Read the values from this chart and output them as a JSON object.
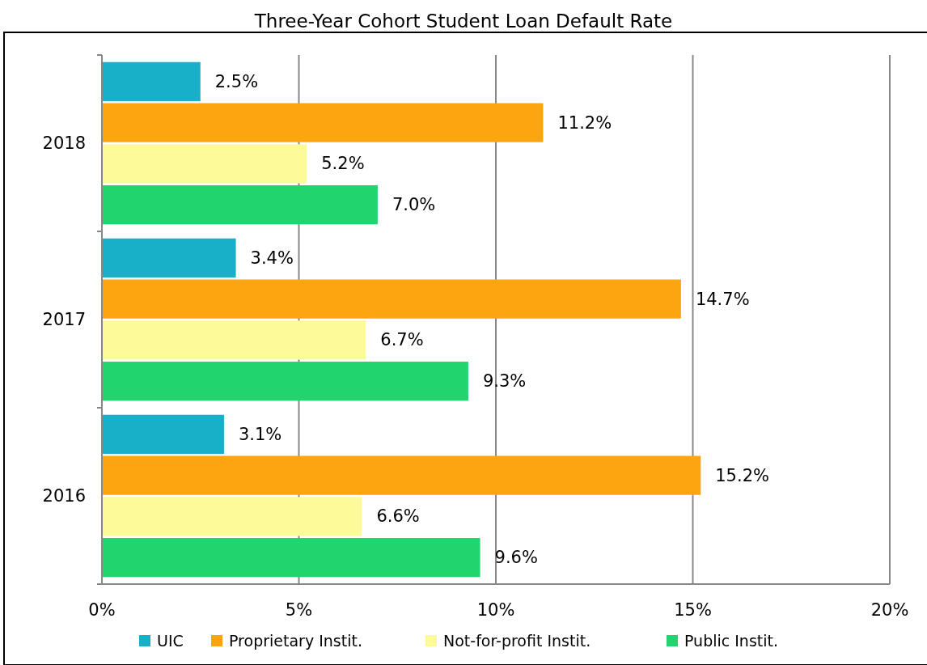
{
  "chart_data": {
    "type": "bar",
    "orientation": "horizontal",
    "title": "Three-Year Cohort Student Loan Default Rate",
    "categories": [
      "2018",
      "2017",
      "2016"
    ],
    "series": [
      {
        "name": "UIC",
        "color": "#17b0c8",
        "values": [
          2.5,
          3.4,
          3.1
        ],
        "value_labels": [
          "2.5%",
          "3.4%",
          "3.1%"
        ]
      },
      {
        "name": "Proprietary Instit.",
        "color": "#fca510",
        "values": [
          11.2,
          14.7,
          15.2
        ],
        "value_labels": [
          "11.2%",
          "14.7%",
          "15.2%"
        ]
      },
      {
        "name": "Not-for-profit Instit.",
        "color": "#fdfa9a",
        "values": [
          5.2,
          6.7,
          6.6
        ],
        "value_labels": [
          "5.2%",
          "6.7%",
          "6.6%"
        ]
      },
      {
        "name": "Public Instit.",
        "color": "#22d46e",
        "values": [
          7.0,
          9.3,
          9.6
        ],
        "value_labels": [
          "7.0%",
          "9.3%",
          "9.6%"
        ]
      }
    ],
    "xlim": [
      0,
      20
    ],
    "xticks": [
      {
        "value": 0,
        "label": "0%"
      },
      {
        "value": 5,
        "label": "5%"
      },
      {
        "value": 10,
        "label": "10%"
      },
      {
        "value": 15,
        "label": "15%"
      },
      {
        "value": 20,
        "label": "20%"
      }
    ],
    "grid": "x",
    "legend": "bottom"
  }
}
